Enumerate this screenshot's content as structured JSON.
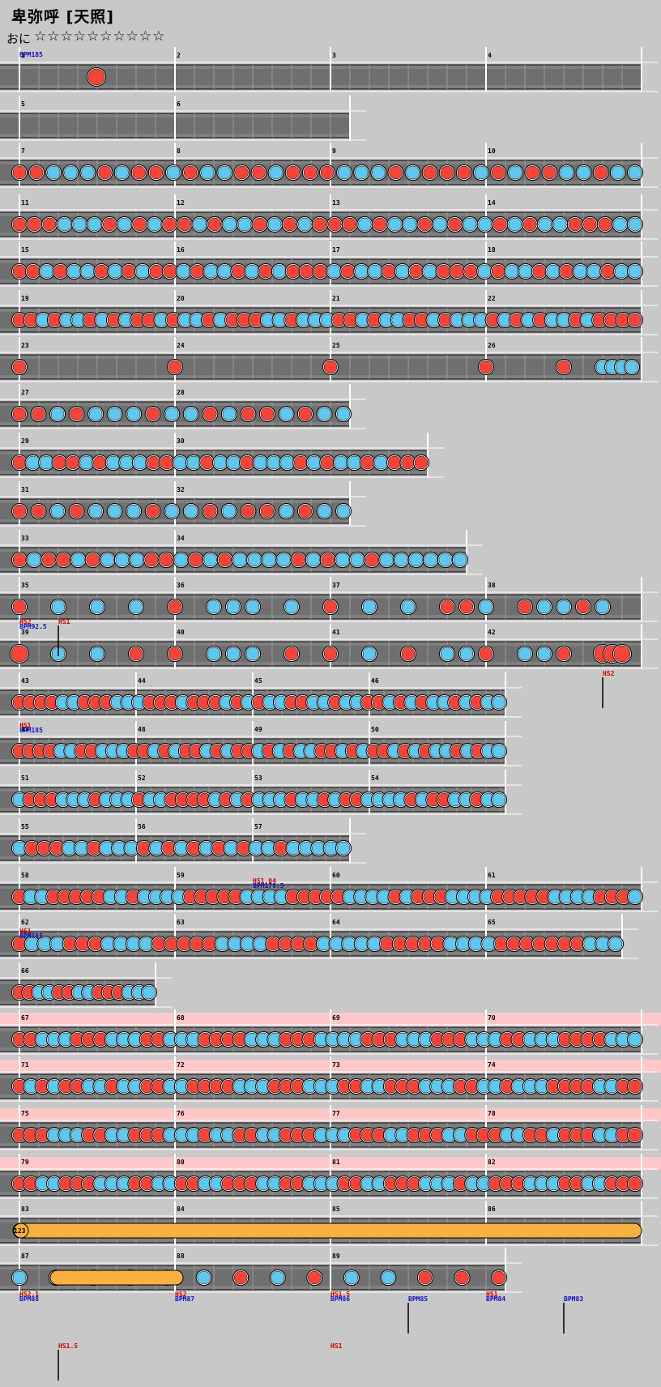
{
  "title": "卑弥呼 [天照]",
  "difficulty": {
    "label": "おに",
    "stars": "☆☆☆☆☆☆☆☆☆☆"
  },
  "colors": {
    "background": "#c8c8c8",
    "lane": "#7f7f7f",
    "lane_band": "#6f6f6f",
    "don": "#f84438",
    "ka": "#5ec8f0",
    "gogo": "#ffc8c8",
    "drumroll": "#f8b040",
    "bpm_text": "#1010c0",
    "hs_text": "#d00000"
  },
  "note_legend": {
    "don": "red note (don)",
    "ka": "blue note (ka)",
    "balloon": "orange roll / balloon"
  },
  "events": {
    "bpm_185": "BPM185",
    "hs2_bpm": "HS2",
    "bpm_92_5": "BPM92.5",
    "hs1": "HS1",
    "hs2": "HS2",
    "hs1_b": "HS1",
    "bpm_185_b": "BPM185",
    "hs1_04": "HS1.04",
    "bpm_178_5": "BPM178.5",
    "hs1_c": "HS1",
    "bpm_185_c": "BPM185",
    "hs2_1": "HS2.1",
    "bpm_88": "BPM88",
    "hs2_b": "HS2",
    "bpm_87": "BPM87",
    "hs1_5": "HS1.5",
    "bpm_86": "BPM86",
    "bpm_85": "BPM85",
    "hs1_d": "HS1",
    "bpm_84": "BPM84",
    "bpm_83": "BPM83",
    "hs1_5_b": "HS1.5",
    "hs1_e": "HS1"
  },
  "balloon_count": "123",
  "rows": [
    {
      "measures": [
        "1",
        "2",
        "3",
        "4"
      ]
    },
    {
      "measures": [
        "5",
        "6"
      ]
    },
    {
      "measures": [
        "7",
        "8",
        "9",
        "10"
      ]
    },
    {
      "measures": [
        "11",
        "12",
        "13",
        "14"
      ]
    },
    {
      "measures": [
        "15",
        "16",
        "17",
        "18"
      ]
    },
    {
      "measures": [
        "19",
        "20",
        "21",
        "22"
      ]
    },
    {
      "measures": [
        "23",
        "24",
        "25",
        "26"
      ]
    },
    {
      "measures": [
        "27",
        "28"
      ]
    },
    {
      "measures": [
        "29",
        "30"
      ]
    },
    {
      "measures": [
        "31",
        "32"
      ]
    },
    {
      "measures": [
        "33",
        "34"
      ]
    },
    {
      "measures": [
        "35",
        "36",
        "37",
        "38"
      ]
    },
    {
      "measures": [
        "39",
        "40",
        "41",
        "42"
      ]
    },
    {
      "measures": [
        "43",
        "44",
        "45",
        "46"
      ]
    },
    {
      "measures": [
        "47",
        "48",
        "49",
        "50"
      ]
    },
    {
      "measures": [
        "51",
        "52",
        "53",
        "54"
      ]
    },
    {
      "measures": [
        "55",
        "56",
        "57"
      ]
    },
    {
      "measures": [
        "58",
        "59",
        "60",
        "61"
      ]
    },
    {
      "measures": [
        "62",
        "63",
        "64",
        "65"
      ]
    },
    {
      "measures": [
        "66"
      ]
    },
    {
      "measures": [
        "67",
        "68",
        "69",
        "70"
      ]
    },
    {
      "measures": [
        "71",
        "72",
        "73",
        "74"
      ]
    },
    {
      "measures": [
        "75",
        "76",
        "77",
        "78"
      ]
    },
    {
      "measures": [
        "79",
        "80",
        "81",
        "82"
      ]
    },
    {
      "measures": [
        "83",
        "84",
        "85",
        "86"
      ]
    },
    {
      "measures": [
        "87",
        "88",
        "89"
      ]
    }
  ]
}
